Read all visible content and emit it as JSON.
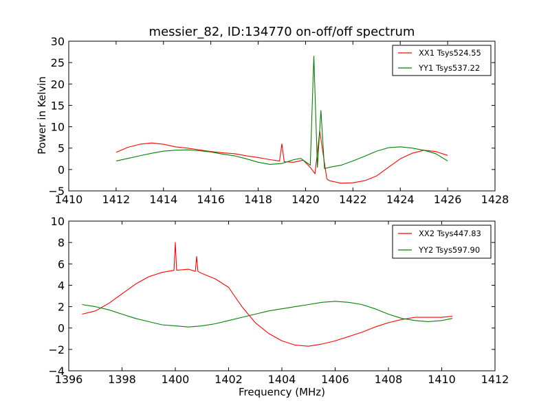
{
  "chart_data": [
    {
      "type": "line",
      "title": "messier_82, ID:134770 on-off/off spectrum",
      "xlabel": "",
      "ylabel": "Power in Kelvin",
      "xlim": [
        1410,
        1428
      ],
      "ylim": [
        -5,
        30
      ],
      "xticks": [
        1410,
        1412,
        1414,
        1416,
        1418,
        1420,
        1422,
        1424,
        1426,
        1428
      ],
      "yticks": [
        -5,
        0,
        5,
        10,
        15,
        20,
        25,
        30
      ],
      "legend_position": "top-right",
      "series": [
        {
          "name": "XX1 Tsys524.55",
          "color": "#ff0000",
          "x": [
            1412.0,
            1412.5,
            1413.0,
            1413.5,
            1414.0,
            1414.5,
            1415.0,
            1415.5,
            1416.0,
            1416.5,
            1417.0,
            1417.5,
            1418.0,
            1418.5,
            1418.9,
            1419.0,
            1419.1,
            1419.5,
            1419.9,
            1420.2,
            1420.4,
            1420.6,
            1420.9,
            1421.0,
            1421.5,
            1422.0,
            1422.5,
            1423.0,
            1423.5,
            1424.0,
            1424.5,
            1425.0,
            1425.5,
            1426.0
          ],
          "y": [
            4.0,
            5.2,
            5.9,
            6.2,
            5.9,
            5.3,
            5.0,
            4.6,
            4.2,
            3.9,
            3.7,
            3.2,
            2.8,
            2.3,
            2.0,
            6.0,
            1.8,
            1.7,
            2.2,
            0.5,
            -1.0,
            9.0,
            -2.2,
            -2.6,
            -3.2,
            -3.1,
            -2.6,
            -1.5,
            0.5,
            2.5,
            3.8,
            4.5,
            4.2,
            3.3
          ]
        },
        {
          "name": "YY1 Tsys537.22",
          "color": "#008000",
          "x": [
            1412.0,
            1412.5,
            1413.0,
            1413.5,
            1414.0,
            1414.5,
            1415.0,
            1415.5,
            1416.0,
            1416.5,
            1417.0,
            1417.5,
            1418.0,
            1418.5,
            1419.0,
            1419.5,
            1419.8,
            1420.2,
            1420.35,
            1420.5,
            1420.65,
            1420.8,
            1421.0,
            1421.5,
            1422.0,
            1422.5,
            1423.0,
            1423.5,
            1424.0,
            1424.5,
            1425.0,
            1425.5,
            1426.0
          ],
          "y": [
            2.0,
            2.6,
            3.2,
            3.8,
            4.3,
            4.5,
            4.6,
            4.4,
            4.1,
            3.6,
            3.2,
            2.5,
            1.7,
            1.2,
            1.4,
            2.3,
            2.6,
            1.0,
            26.5,
            0.5,
            13.8,
            0.2,
            0.5,
            1.0,
            2.0,
            3.1,
            4.3,
            5.1,
            5.3,
            5.0,
            4.5,
            3.7,
            2.0
          ]
        }
      ]
    },
    {
      "type": "line",
      "title": "",
      "xlabel": "Frequency (MHz)",
      "ylabel": "",
      "xlim": [
        1396,
        1412
      ],
      "ylim": [
        -4,
        10
      ],
      "xticks": [
        1396,
        1398,
        1400,
        1402,
        1404,
        1406,
        1408,
        1410,
        1412
      ],
      "yticks": [
        -4,
        -2,
        0,
        2,
        4,
        6,
        8,
        10
      ],
      "legend_position": "top-right",
      "series": [
        {
          "name": "XX2 Tsys447.83",
          "color": "#ff0000",
          "x": [
            1396.5,
            1397.0,
            1397.5,
            1398.0,
            1398.5,
            1399.0,
            1399.5,
            1399.95,
            1400.0,
            1400.05,
            1400.5,
            1400.75,
            1400.8,
            1400.85,
            1401.0,
            1401.5,
            1402.0,
            1402.5,
            1403.0,
            1403.5,
            1404.0,
            1404.5,
            1405.0,
            1405.5,
            1406.0,
            1406.5,
            1407.0,
            1407.5,
            1408.0,
            1408.5,
            1409.0,
            1409.5,
            1410.0,
            1410.4
          ],
          "y": [
            1.3,
            1.6,
            2.3,
            3.2,
            4.1,
            4.8,
            5.2,
            5.4,
            8.0,
            5.4,
            5.5,
            5.3,
            6.7,
            5.3,
            5.1,
            4.6,
            3.8,
            2.0,
            0.5,
            -0.5,
            -1.2,
            -1.6,
            -1.7,
            -1.5,
            -1.2,
            -0.8,
            -0.4,
            0.1,
            0.5,
            0.8,
            1.0,
            1.0,
            1.0,
            1.1
          ]
        },
        {
          "name": "YY2 Tsys597.90",
          "color": "#008000",
          "x": [
            1396.5,
            1397.0,
            1397.5,
            1398.0,
            1398.5,
            1399.0,
            1399.5,
            1400.0,
            1400.5,
            1401.0,
            1401.5,
            1402.0,
            1402.5,
            1403.0,
            1403.5,
            1404.0,
            1404.5,
            1405.0,
            1405.5,
            1406.0,
            1406.5,
            1407.0,
            1407.5,
            1408.0,
            1408.5,
            1409.0,
            1409.5,
            1410.0,
            1410.4
          ],
          "y": [
            2.2,
            2.0,
            1.7,
            1.3,
            0.9,
            0.6,
            0.3,
            0.2,
            0.1,
            0.2,
            0.4,
            0.7,
            1.0,
            1.3,
            1.6,
            1.8,
            2.0,
            2.2,
            2.4,
            2.5,
            2.4,
            2.2,
            1.8,
            1.3,
            0.9,
            0.7,
            0.6,
            0.7,
            0.9
          ]
        }
      ]
    }
  ]
}
